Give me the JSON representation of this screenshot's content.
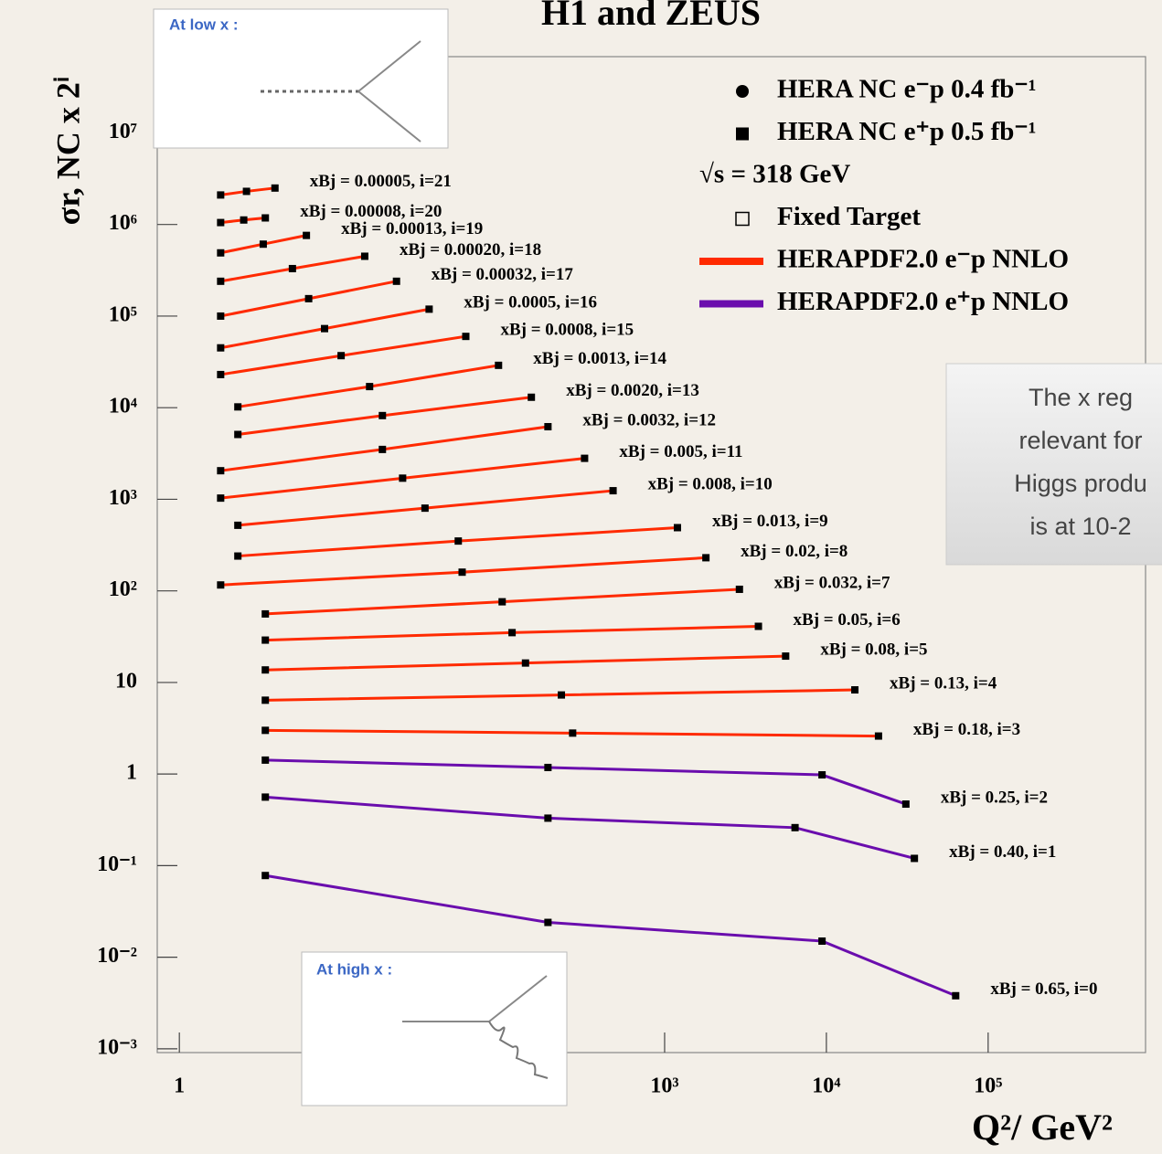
{
  "chart_data": {
    "type": "scatter",
    "title": "H1 and ZEUS",
    "y_label": "σr, NC x 2ⁱ",
    "x_label": "Q²/ GeV²",
    "log_x": true,
    "log_y": true,
    "xlim": [
      0.73,
      940000
    ],
    "ylim": [
      0.00091,
      68000000
    ],
    "xticks": [
      1,
      {
        "value": 1000,
        "label": "10³"
      },
      {
        "value": 10000,
        "label": "10⁴"
      },
      {
        "value": 100000,
        "label": "10⁵"
      }
    ],
    "yticks": [
      {
        "value": 10000000,
        "label": "10⁷"
      },
      {
        "value": 1000000,
        "label": "10⁶"
      },
      {
        "value": 100000,
        "label": "10⁵"
      },
      {
        "value": 10000,
        "label": "10⁴"
      },
      {
        "value": 1000,
        "label": "10³"
      },
      {
        "value": 100,
        "label": "10²"
      },
      10,
      1,
      {
        "value": 0.1,
        "label": "10⁻¹"
      },
      {
        "value": 0.01,
        "label": "10⁻²"
      },
      {
        "value": 0.001,
        "label": "10⁻³"
      }
    ],
    "legend": [
      {
        "label": "HERA NC e⁻p 0.4 fb⁻¹",
        "marker": "circle"
      },
      {
        "label": "HERA NC e⁺p 0.5 fb⁻¹",
        "marker": "square"
      },
      {
        "label": "√s = 318 GeV"
      },
      {
        "label": "Fixed Target",
        "marker": "open-square"
      },
      {
        "label": "HERAPDF2.0 e⁻p NNLO",
        "color": "#ff2a00"
      },
      {
        "label": "HERAPDF2.0 e⁺p NNLO",
        "color": "#6a0dad"
      }
    ],
    "series": [
      {
        "name": "xBj = 0.00005, i=21",
        "color": "#ff2a00",
        "x": [
          1.8,
          2.6,
          3.9
        ],
        "values": [
          2100000,
          2300000,
          2500000
        ]
      },
      {
        "name": "xBj = 0.00008, i=20",
        "color": "#ff2a00",
        "x": [
          1.8,
          2.5,
          3.4
        ],
        "values": [
          1050000,
          1120000,
          1180000
        ]
      },
      {
        "name": "xBj = 0.00013, i=19",
        "color": "#ff2a00",
        "x": [
          1.8,
          3.3,
          6.1
        ],
        "values": [
          490000,
          610000,
          760000
        ]
      },
      {
        "name": "xBj = 0.00020, i=18",
        "color": "#ff2a00",
        "x": [
          1.8,
          5.0,
          14
        ],
        "values": [
          240000,
          330000,
          450000
        ]
      },
      {
        "name": "xBj = 0.00032, i=17",
        "color": "#ff2a00",
        "x": [
          1.8,
          6.3,
          22
        ],
        "values": [
          100000,
          155000,
          240000
        ]
      },
      {
        "name": "xBj = 0.0005, i=16",
        "color": "#ff2a00",
        "x": [
          1.8,
          7.9,
          35
        ],
        "values": [
          45000,
          73000,
          119000
        ]
      },
      {
        "name": "xBj = 0.0008, i=15",
        "color": "#ff2a00",
        "x": [
          1.8,
          10,
          59
        ],
        "values": [
          23000,
          37000,
          60000
        ]
      },
      {
        "name": "xBj = 0.0013, i=14",
        "color": "#ff2a00",
        "x": [
          2.3,
          15,
          94
        ],
        "values": [
          10200,
          17000,
          29000
        ]
      },
      {
        "name": "xBj = 0.0020, i=13",
        "color": "#ff2a00",
        "x": [
          2.3,
          18,
          150
        ],
        "values": [
          5100,
          8200,
          13000
        ]
      },
      {
        "name": "xBj = 0.0032, i=12",
        "color": "#ff2a00",
        "x": [
          1.8,
          18,
          190
        ],
        "values": [
          2050,
          3500,
          6200
        ]
      },
      {
        "name": "xBj = 0.005, i=11",
        "color": "#ff2a00",
        "x": [
          1.8,
          24,
          320
        ],
        "values": [
          1030,
          1700,
          2800
        ]
      },
      {
        "name": "xBj = 0.008, i=10",
        "color": "#ff2a00",
        "x": [
          2.3,
          33,
          480
        ],
        "values": [
          520,
          800,
          1240
        ]
      },
      {
        "name": "xBj = 0.013, i=9",
        "color": "#ff2a00",
        "x": [
          2.3,
          53,
          1200
        ],
        "values": [
          240,
          350,
          490
        ]
      },
      {
        "name": "xBj = 0.02, i=8",
        "color": "#ff2a00",
        "x": [
          1.8,
          56,
          1800
        ],
        "values": [
          116,
          160,
          230
        ]
      },
      {
        "name": "xBj = 0.032, i=7",
        "color": "#ff2a00",
        "x": [
          3.4,
          99,
          2900
        ],
        "values": [
          56,
          76,
          104
        ]
      },
      {
        "name": "xBj = 0.05, i=6",
        "color": "#ff2a00",
        "x": [
          3.4,
          114,
          3800
        ],
        "values": [
          29,
          35,
          41
        ]
      },
      {
        "name": "xBj = 0.08, i=5",
        "color": "#ff2a00",
        "x": [
          3.4,
          138,
          5600
        ],
        "values": [
          13.7,
          16.3,
          19.4
        ]
      },
      {
        "name": "xBj = 0.13, i=4",
        "color": "#ff2a00",
        "x": [
          3.4,
          230,
          15000
        ],
        "values": [
          6.4,
          7.3,
          8.3
        ]
      },
      {
        "name": "xBj = 0.18, i=3",
        "color": "#ff2a00",
        "x": [
          3.4,
          270,
          21000
        ],
        "values": [
          3.0,
          2.8,
          2.6
        ]
      },
      {
        "name": "xBj = 0.25, i=2",
        "color": "#6a0dad",
        "x": [
          3.4,
          190,
          9400,
          31000
        ],
        "values": [
          1.42,
          1.18,
          0.98,
          0.47
        ]
      },
      {
        "name": "xBj = 0.40, i=1",
        "color": "#6a0dad",
        "x": [
          3.4,
          190,
          6400,
          35000
        ],
        "values": [
          0.56,
          0.33,
          0.26,
          0.12
        ]
      },
      {
        "name": "xBj = 0.65, i=0",
        "color": "#6a0dad",
        "x": [
          3.4,
          190,
          9400,
          63000
        ],
        "values": [
          0.078,
          0.024,
          0.015,
          0.0038
        ]
      }
    ]
  },
  "insets": [
    {
      "title": "At low x :"
    },
    {
      "title": "At high x :"
    }
  ],
  "callout": {
    "lines": [
      "The x reg",
      "relevant for",
      "Higgs produ",
      "is at 10-2"
    ]
  }
}
